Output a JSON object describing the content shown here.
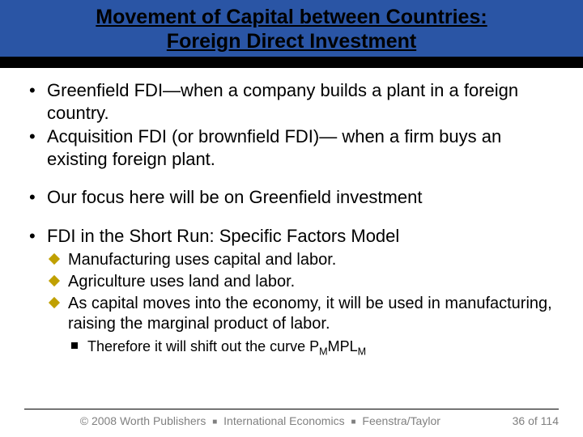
{
  "colors": {
    "title_bg": "#2a55a5",
    "title_stripe": "#000000",
    "title_text": "#000000",
    "body_text": "#000000",
    "diamond_fill": "#c0a000",
    "square_fill": "#000000",
    "footer_text": "#808080",
    "background": "#ffffff"
  },
  "title": {
    "line1": "Movement of Capital between Countries:",
    "line2": "Foreign Direct Investment"
  },
  "bullets": {
    "b1": "Greenfield FDI—when a company builds a plant in a foreign country.",
    "b2": "Acquisition FDI (or brownfield FDI)— when a firm buys an existing foreign plant.",
    "b3": "Our focus here will be on Greenfield investment",
    "b4": "FDI in the Short Run: Specific Factors Model",
    "sub1": "Manufacturing uses capital and labor.",
    "sub2": "Agriculture uses land and labor.",
    "sub3": "As capital moves into the economy, it will be used in manufacturing, raising the marginal product of labor.",
    "subsub1_prefix": "Therefore it will shift out the curve P",
    "subsub1_sub1": "M",
    "subsub1_mid": "MPL",
    "subsub1_sub2": "M"
  },
  "footer": {
    "copyright": "© 2008 Worth Publishers",
    "part2": "International Economics",
    "part3": "Feenstra/Taylor",
    "page_current": "36",
    "page_sep": " of ",
    "page_total": "114"
  }
}
